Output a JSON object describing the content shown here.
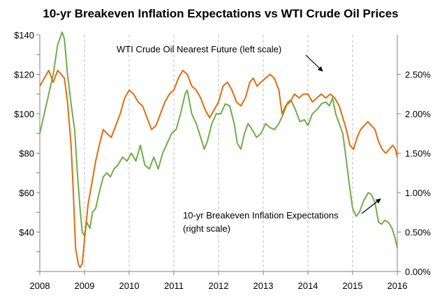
{
  "chart_data": {
    "type": "line",
    "title": "10-yr Breakeven Inflation Expectations vs WTI Crude Oil Prices",
    "xlim": [
      2008,
      2016
    ],
    "x_ticks": [
      "2008",
      "2009",
      "2010",
      "2011",
      "2012",
      "2013",
      "2014",
      "2015",
      "2016"
    ],
    "left_axis": {
      "ylim": [
        20,
        140
      ],
      "ticks": [
        "$40",
        "$60",
        "$80",
        "$100",
        "$120",
        "$140"
      ]
    },
    "right_axis": {
      "ylim": [
        0,
        3.0
      ],
      "ticks": [
        "0.00%",
        "0.50%",
        "1.00%",
        "1.50%",
        "2.00%",
        "2.50%"
      ]
    },
    "grid": "vertical-dashed",
    "series": [
      {
        "name": "WTI Crude Oil Nearest Future",
        "color": "#70ad47",
        "axis": "left",
        "points": [
          [
            2008.0,
            90
          ],
          [
            2008.1,
            100
          ],
          [
            2008.2,
            110
          ],
          [
            2008.3,
            120
          ],
          [
            2008.4,
            135
          ],
          [
            2008.5,
            142
          ],
          [
            2008.55,
            138
          ],
          [
            2008.62,
            120
          ],
          [
            2008.7,
            105
          ],
          [
            2008.78,
            92
          ],
          [
            2008.84,
            70
          ],
          [
            2008.9,
            52
          ],
          [
            2008.95,
            40
          ],
          [
            2009.0,
            38
          ],
          [
            2009.05,
            45
          ],
          [
            2009.12,
            42
          ],
          [
            2009.18,
            50
          ],
          [
            2009.25,
            52
          ],
          [
            2009.33,
            60
          ],
          [
            2009.42,
            68
          ],
          [
            2009.5,
            70
          ],
          [
            2009.58,
            68
          ],
          [
            2009.66,
            72
          ],
          [
            2009.75,
            74
          ],
          [
            2009.85,
            78
          ],
          [
            2009.95,
            76
          ],
          [
            2010.05,
            80
          ],
          [
            2010.15,
            76
          ],
          [
            2010.25,
            84
          ],
          [
            2010.35,
            74
          ],
          [
            2010.45,
            72
          ],
          [
            2010.55,
            78
          ],
          [
            2010.65,
            72
          ],
          [
            2010.75,
            80
          ],
          [
            2010.85,
            85
          ],
          [
            2010.95,
            90
          ],
          [
            2011.05,
            92
          ],
          [
            2011.15,
            100
          ],
          [
            2011.25,
            110
          ],
          [
            2011.3,
            112
          ],
          [
            2011.4,
            100
          ],
          [
            2011.5,
            95
          ],
          [
            2011.6,
            88
          ],
          [
            2011.68,
            82
          ],
          [
            2011.75,
            86
          ],
          [
            2011.85,
            95
          ],
          [
            2011.95,
            100
          ],
          [
            2012.05,
            100
          ],
          [
            2012.15,
            105
          ],
          [
            2012.25,
            104
          ],
          [
            2012.35,
            95
          ],
          [
            2012.42,
            85
          ],
          [
            2012.5,
            82
          ],
          [
            2012.58,
            90
          ],
          [
            2012.66,
            95
          ],
          [
            2012.75,
            92
          ],
          [
            2012.85,
            88
          ],
          [
            2012.95,
            90
          ],
          [
            2013.05,
            95
          ],
          [
            2013.15,
            93
          ],
          [
            2013.25,
            92
          ],
          [
            2013.35,
            95
          ],
          [
            2013.45,
            100
          ],
          [
            2013.55,
            106
          ],
          [
            2013.62,
            107
          ],
          [
            2013.72,
            102
          ],
          [
            2013.82,
            96
          ],
          [
            2013.92,
            97
          ],
          [
            2014.0,
            94
          ],
          [
            2014.1,
            100
          ],
          [
            2014.2,
            102
          ],
          [
            2014.3,
            105
          ],
          [
            2014.4,
            106
          ],
          [
            2014.48,
            104
          ],
          [
            2014.55,
            108
          ],
          [
            2014.62,
            100
          ],
          [
            2014.7,
            95
          ],
          [
            2014.78,
            90
          ],
          [
            2014.85,
            78
          ],
          [
            2014.92,
            65
          ],
          [
            2015.0,
            52
          ],
          [
            2015.08,
            48
          ],
          [
            2015.15,
            50
          ],
          [
            2015.25,
            56
          ],
          [
            2015.35,
            60
          ],
          [
            2015.42,
            59
          ],
          [
            2015.5,
            55
          ],
          [
            2015.58,
            45
          ],
          [
            2015.65,
            44
          ],
          [
            2015.72,
            46
          ],
          [
            2015.8,
            45
          ],
          [
            2015.88,
            42
          ],
          [
            2015.95,
            37
          ],
          [
            2016.0,
            32
          ]
        ]
      },
      {
        "name": "10-yr Breakeven Inflation Expectations",
        "color": "#e36c0a",
        "axis": "right",
        "points": [
          [
            2008.0,
            2.35
          ],
          [
            2008.1,
            2.45
          ],
          [
            2008.2,
            2.55
          ],
          [
            2008.3,
            2.4
          ],
          [
            2008.4,
            2.55
          ],
          [
            2008.48,
            2.5
          ],
          [
            2008.55,
            2.45
          ],
          [
            2008.62,
            2.15
          ],
          [
            2008.7,
            1.6
          ],
          [
            2008.75,
            1.0
          ],
          [
            2008.8,
            0.3
          ],
          [
            2008.86,
            0.1
          ],
          [
            2008.9,
            0.05
          ],
          [
            2008.95,
            0.1
          ],
          [
            2009.0,
            0.4
          ],
          [
            2009.08,
            0.85
          ],
          [
            2009.16,
            1.1
          ],
          [
            2009.25,
            1.4
          ],
          [
            2009.33,
            1.6
          ],
          [
            2009.42,
            1.8
          ],
          [
            2009.5,
            1.75
          ],
          [
            2009.6,
            1.7
          ],
          [
            2009.7,
            1.85
          ],
          [
            2009.8,
            2.0
          ],
          [
            2009.9,
            2.2
          ],
          [
            2010.0,
            2.3
          ],
          [
            2010.1,
            2.25
          ],
          [
            2010.2,
            2.15
          ],
          [
            2010.3,
            2.1
          ],
          [
            2010.4,
            1.95
          ],
          [
            2010.5,
            1.8
          ],
          [
            2010.6,
            1.85
          ],
          [
            2010.7,
            2.0
          ],
          [
            2010.8,
            2.15
          ],
          [
            2010.9,
            2.25
          ],
          [
            2011.0,
            2.3
          ],
          [
            2011.1,
            2.45
          ],
          [
            2011.2,
            2.55
          ],
          [
            2011.3,
            2.5
          ],
          [
            2011.4,
            2.35
          ],
          [
            2011.5,
            2.3
          ],
          [
            2011.6,
            2.2
          ],
          [
            2011.7,
            2.05
          ],
          [
            2011.8,
            1.95
          ],
          [
            2011.9,
            2.05
          ],
          [
            2012.0,
            2.15
          ],
          [
            2012.1,
            2.35
          ],
          [
            2012.2,
            2.4
          ],
          [
            2012.3,
            2.3
          ],
          [
            2012.4,
            2.15
          ],
          [
            2012.5,
            2.1
          ],
          [
            2012.6,
            2.2
          ],
          [
            2012.7,
            2.4
          ],
          [
            2012.78,
            2.45
          ],
          [
            2012.86,
            2.35
          ],
          [
            2012.95,
            2.4
          ],
          [
            2013.05,
            2.45
          ],
          [
            2013.15,
            2.5
          ],
          [
            2013.25,
            2.45
          ],
          [
            2013.35,
            2.3
          ],
          [
            2013.42,
            2.0
          ],
          [
            2013.5,
            2.1
          ],
          [
            2013.6,
            2.15
          ],
          [
            2013.7,
            2.25
          ],
          [
            2013.8,
            2.2
          ],
          [
            2013.9,
            2.25
          ],
          [
            2014.0,
            2.25
          ],
          [
            2014.1,
            2.15
          ],
          [
            2014.2,
            2.2
          ],
          [
            2014.3,
            2.25
          ],
          [
            2014.4,
            2.2
          ],
          [
            2014.5,
            2.25
          ],
          [
            2014.6,
            2.2
          ],
          [
            2014.7,
            2.1
          ],
          [
            2014.78,
            1.95
          ],
          [
            2014.86,
            1.8
          ],
          [
            2014.94,
            1.6
          ],
          [
            2015.02,
            1.55
          ],
          [
            2015.1,
            1.7
          ],
          [
            2015.18,
            1.8
          ],
          [
            2015.26,
            1.85
          ],
          [
            2015.34,
            1.9
          ],
          [
            2015.42,
            1.85
          ],
          [
            2015.5,
            1.8
          ],
          [
            2015.58,
            1.65
          ],
          [
            2015.66,
            1.55
          ],
          [
            2015.74,
            1.5
          ],
          [
            2015.82,
            1.55
          ],
          [
            2015.9,
            1.6
          ],
          [
            2015.96,
            1.55
          ],
          [
            2016.0,
            1.45
          ]
        ]
      }
    ],
    "annotations": [
      {
        "lines": [
          "WTI Crude Oil Nearest Future  (left scale)"
        ],
        "series": "WTI Crude Oil Nearest Future"
      },
      {
        "lines": [
          "10-yr Breakeven Inflation Expectations",
          "(right scale)"
        ],
        "series": "10-yr Breakeven Inflation Expectations"
      }
    ]
  }
}
